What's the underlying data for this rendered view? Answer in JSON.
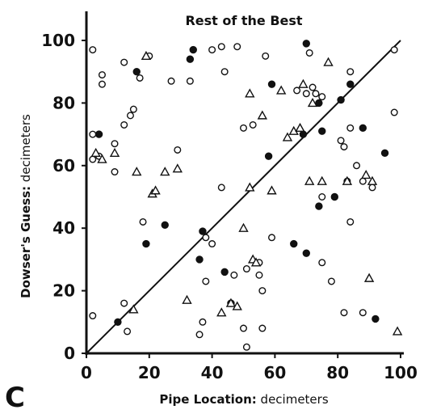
{
  "chart_data": {
    "type": "scatter",
    "title": "Rest of the Best",
    "panel_label": "C",
    "xlabel_bold": "Pipe Location:",
    "xlabel_unit": " decimeters",
    "ylabel_bold": "Dowser's Guess:",
    "ylabel_unit": " decimeters",
    "xlim": [
      0,
      100
    ],
    "ylim": [
      0,
      100
    ],
    "x_ticks": [
      0,
      20,
      40,
      60,
      80,
      100
    ],
    "y_ticks": [
      0,
      20,
      40,
      60,
      80,
      100
    ],
    "grid": false,
    "legend": "none",
    "reference_line": {
      "from": [
        0,
        0
      ],
      "to": [
        100,
        100
      ]
    },
    "series": [
      {
        "marker": "open-circle",
        "points": [
          [
            2,
            97
          ],
          [
            2,
            70
          ],
          [
            2,
            62
          ],
          [
            2,
            12
          ],
          [
            4,
            63
          ],
          [
            5,
            89
          ],
          [
            5,
            86
          ],
          [
            9,
            67
          ],
          [
            9,
            58
          ],
          [
            12,
            93
          ],
          [
            12,
            73
          ],
          [
            12,
            16
          ],
          [
            13,
            7
          ],
          [
            14,
            76
          ],
          [
            15,
            78
          ],
          [
            17,
            88
          ],
          [
            20,
            95
          ],
          [
            18,
            42
          ],
          [
            27,
            87
          ],
          [
            29,
            65
          ],
          [
            33,
            87
          ],
          [
            36,
            6
          ],
          [
            37,
            10
          ],
          [
            38,
            23
          ],
          [
            38,
            37
          ],
          [
            40,
            35
          ],
          [
            40,
            97
          ],
          [
            43,
            53
          ],
          [
            43,
            98
          ],
          [
            44,
            90
          ],
          [
            47,
            25
          ],
          [
            48,
            98
          ],
          [
            50,
            72
          ],
          [
            50,
            8
          ],
          [
            51,
            2
          ],
          [
            51,
            27
          ],
          [
            53,
            73
          ],
          [
            55,
            29
          ],
          [
            55,
            25
          ],
          [
            56,
            20
          ],
          [
            56,
            8
          ],
          [
            57,
            95
          ],
          [
            59,
            37
          ],
          [
            67,
            84
          ],
          [
            70,
            83
          ],
          [
            71,
            96
          ],
          [
            72,
            85
          ],
          [
            73,
            83
          ],
          [
            75,
            82
          ],
          [
            75,
            50
          ],
          [
            75,
            29
          ],
          [
            78,
            23
          ],
          [
            81,
            68
          ],
          [
            82,
            13
          ],
          [
            82,
            66
          ],
          [
            83,
            55
          ],
          [
            84,
            90
          ],
          [
            84,
            72
          ],
          [
            84,
            42
          ],
          [
            86,
            60
          ],
          [
            88,
            55
          ],
          [
            88,
            13
          ],
          [
            91,
            53
          ],
          [
            98,
            97
          ],
          [
            98,
            77
          ]
        ]
      },
      {
        "marker": "filled-circle",
        "points": [
          [
            4,
            70
          ],
          [
            10,
            10
          ],
          [
            16,
            90
          ],
          [
            19,
            35
          ],
          [
            25,
            41
          ],
          [
            33,
            94
          ],
          [
            34,
            97
          ],
          [
            36,
            30
          ],
          [
            37,
            39
          ],
          [
            44,
            26
          ],
          [
            46,
            16
          ],
          [
            58,
            63
          ],
          [
            59,
            86
          ],
          [
            66,
            35
          ],
          [
            69,
            70
          ],
          [
            70,
            99
          ],
          [
            70,
            32
          ],
          [
            74,
            47
          ],
          [
            74,
            80
          ],
          [
            75,
            71
          ],
          [
            79,
            50
          ],
          [
            81,
            81
          ],
          [
            84,
            86
          ],
          [
            88,
            72
          ],
          [
            92,
            11
          ],
          [
            95,
            64
          ]
        ]
      },
      {
        "marker": "open-triangle",
        "points": [
          [
            3,
            64
          ],
          [
            5,
            62
          ],
          [
            9,
            64
          ],
          [
            15,
            14
          ],
          [
            16,
            58
          ],
          [
            19,
            95
          ],
          [
            21,
            51
          ],
          [
            22,
            52
          ],
          [
            25,
            58
          ],
          [
            29,
            59
          ],
          [
            32,
            17
          ],
          [
            43,
            13
          ],
          [
            46,
            16
          ],
          [
            48,
            15
          ],
          [
            50,
            40
          ],
          [
            52,
            53
          ],
          [
            52,
            83
          ],
          [
            53,
            30
          ],
          [
            54,
            29
          ],
          [
            56,
            76
          ],
          [
            59,
            52
          ],
          [
            62,
            84
          ],
          [
            64,
            69
          ],
          [
            66,
            71
          ],
          [
            68,
            72
          ],
          [
            69,
            86
          ],
          [
            71,
            55
          ],
          [
            72,
            80
          ],
          [
            75,
            55
          ],
          [
            77,
            93
          ],
          [
            83,
            55
          ],
          [
            89,
            57
          ],
          [
            90,
            24
          ],
          [
            91,
            55
          ],
          [
            99,
            7
          ]
        ]
      }
    ]
  }
}
